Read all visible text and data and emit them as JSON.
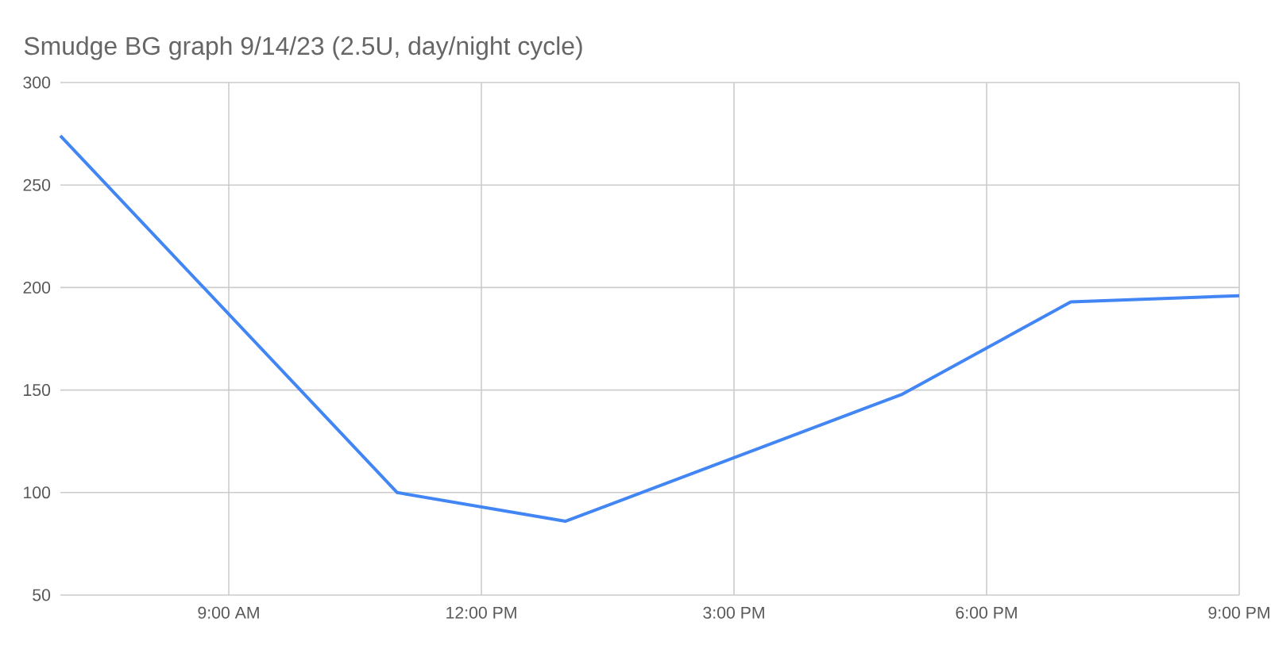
{
  "chart_data": {
    "type": "line",
    "title": "Smudge BG graph 9/14/23 (2.5U, day/night cycle)",
    "x": [
      7,
      11,
      13,
      17,
      19,
      21
    ],
    "series": [
      {
        "color": "#4285f4",
        "values": [
          274,
          100,
          86,
          148,
          193,
          196
        ]
      }
    ],
    "xlim": [
      7,
      21
    ],
    "xticks": [
      {
        "value": 9,
        "label": "9:00 AM"
      },
      {
        "value": 12,
        "label": "12:00 PM"
      },
      {
        "value": 15,
        "label": "3:00 PM"
      },
      {
        "value": 18,
        "label": "6:00 PM"
      },
      {
        "value": 21,
        "label": "9:00 PM"
      }
    ],
    "ylim": [
      50,
      300
    ],
    "yticks": [
      50,
      100,
      150,
      200,
      250,
      300
    ],
    "grid": true,
    "marker": "none",
    "line_style": "solid"
  }
}
